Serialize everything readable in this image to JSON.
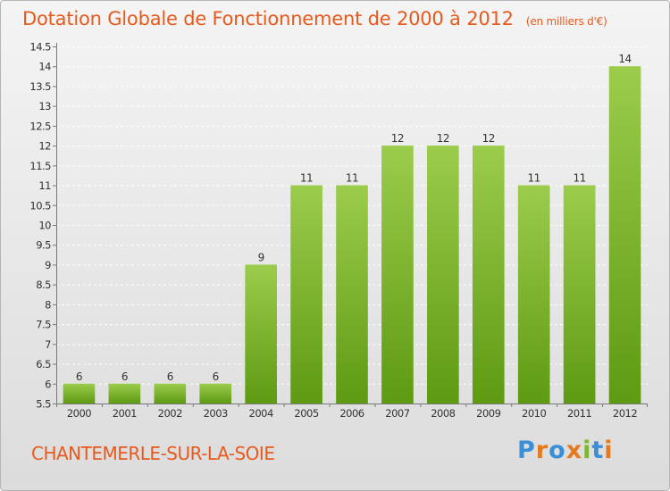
{
  "title": "Dotation Globale de Fonctionnement de 2000 à 2012",
  "subtitle": "(en milliers d'€)",
  "commune": "CHANTEMERLE-SUR-LA-SOIE",
  "logo": {
    "text": "Proxiti",
    "letters": [
      {
        "ch": "P",
        "color": "#3b8fd6"
      },
      {
        "ch": "r",
        "color": "#e6781e"
      },
      {
        "ch": "o",
        "color": "#3b8fd6"
      },
      {
        "ch": "x",
        "color": "#e6781e"
      },
      {
        "ch": "i",
        "color": "#7cb82f"
      },
      {
        "ch": "t",
        "color": "#3b8fd6"
      },
      {
        "ch": "i",
        "color": "#e6781e"
      }
    ]
  },
  "colors": {
    "bar_top": "#9ccc4c",
    "bar_bottom": "#5e9a12",
    "title": "#e65a1e"
  },
  "chart_data": {
    "type": "bar",
    "title": "Dotation Globale de Fonctionnement de 2000 à 2012",
    "subtitle": "(en milliers d'€)",
    "categories": [
      "2000",
      "2001",
      "2002",
      "2003",
      "2004",
      "2005",
      "2006",
      "2007",
      "2008",
      "2009",
      "2010",
      "2011",
      "2012"
    ],
    "values": [
      6,
      6,
      6,
      6,
      9,
      11,
      11,
      12,
      12,
      12,
      11,
      11,
      14
    ],
    "data_labels": [
      "6",
      "6",
      "6",
      "6",
      "9",
      "11",
      "11",
      "12",
      "12",
      "12",
      "11",
      "11",
      "14"
    ],
    "ylim": [
      5.5,
      14.5
    ],
    "yticks": [
      "5.5",
      "6",
      "6.5",
      "7",
      "7.5",
      "8",
      "8.5",
      "9",
      "9.5",
      "10",
      "10.5",
      "11",
      "11.5",
      "12",
      "12.5",
      "13",
      "13.5",
      "14",
      "14.5"
    ],
    "grid": true,
    "legend": "none"
  }
}
